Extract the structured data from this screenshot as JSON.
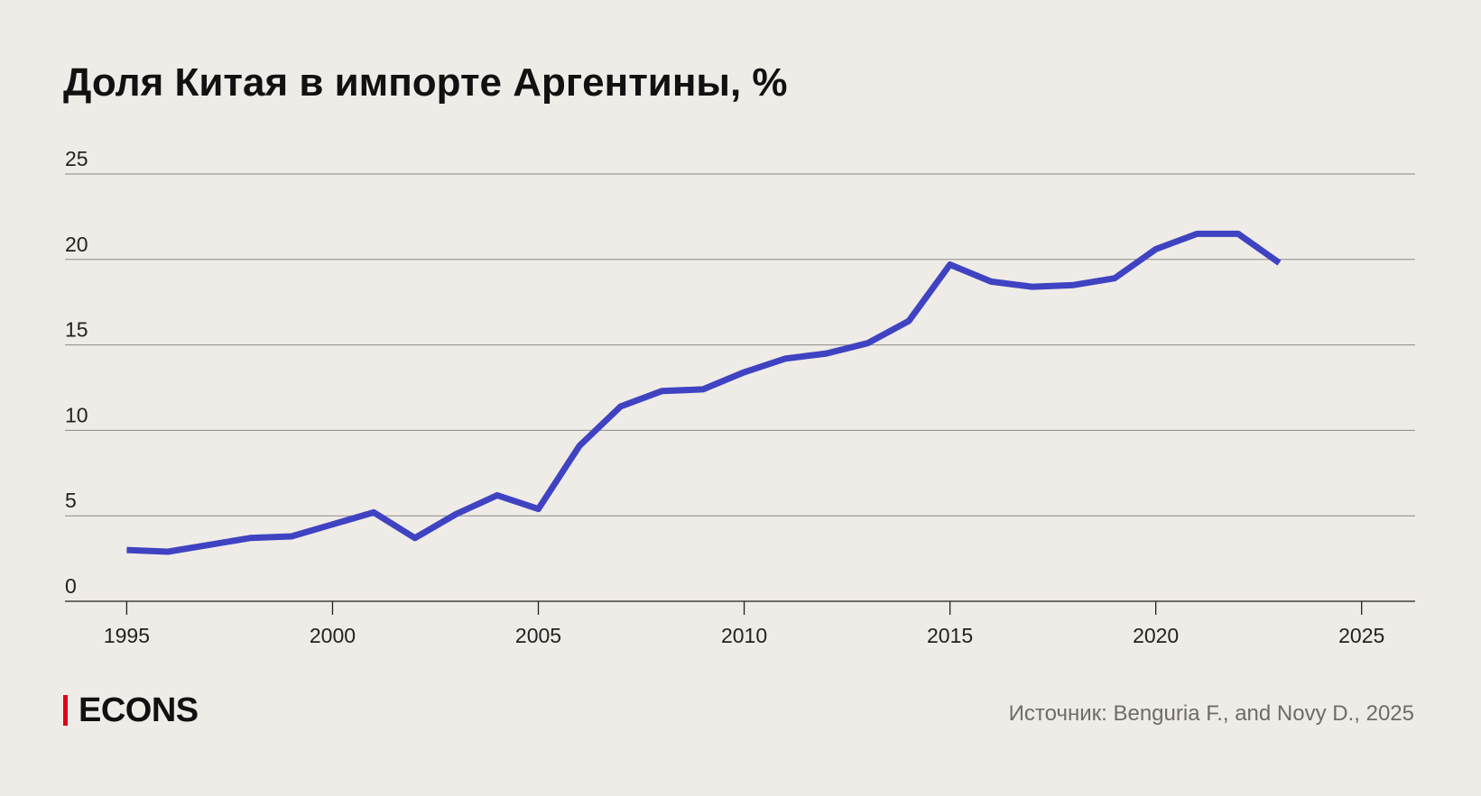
{
  "chart_data": {
    "type": "line",
    "title": "Доля Китая в импорте Аргентины, %",
    "xlabel": "",
    "ylabel": "",
    "xlim": [
      1993.5,
      2026.3
    ],
    "ylim": [
      0,
      25
    ],
    "x_ticks": [
      1995,
      2000,
      2005,
      2010,
      2015,
      2020,
      2025
    ],
    "y_ticks": [
      0,
      5,
      10,
      15,
      20,
      25
    ],
    "grid": true,
    "legend": "none",
    "line_color": "#3f43c2",
    "series": [
      {
        "x": [
          1995,
          1996,
          1997,
          1998,
          1999,
          2000,
          2001,
          2002,
          2003,
          2004,
          2005,
          2006,
          2007,
          2008,
          2009,
          2010,
          2011,
          2012,
          2013,
          2014,
          2015,
          2016,
          2017,
          2018,
          2019,
          2020,
          2021,
          2022,
          2023
        ],
        "values": [
          3.0,
          2.9,
          3.3,
          3.7,
          3.8,
          4.5,
          5.2,
          3.7,
          5.1,
          6.2,
          5.4,
          9.1,
          11.4,
          12.3,
          12.4,
          13.4,
          14.2,
          14.5,
          15.1,
          16.4,
          19.7,
          18.7,
          18.4,
          18.5,
          18.9,
          20.6,
          21.5,
          21.5,
          19.8
        ]
      }
    ]
  },
  "brand": {
    "name": "ECONS",
    "accent_color": "#e0001b"
  },
  "source": "Источник: Benguria F., and Novy D., 2025"
}
